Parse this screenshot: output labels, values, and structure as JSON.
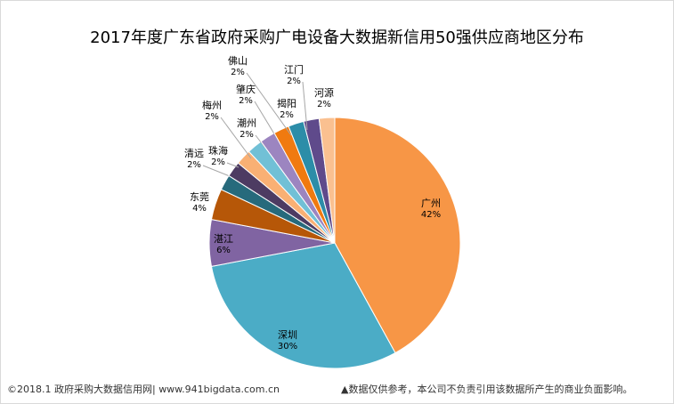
{
  "chart_data": {
    "type": "pie",
    "title": "2017年度广东省政府采购广电设备大数据新信用50强供应商地区分布",
    "slices": [
      {
        "label": "广州",
        "value": 42,
        "pct": "42%",
        "color": "#F79646"
      },
      {
        "label": "深圳",
        "value": 30,
        "pct": "30%",
        "color": "#4BACC6"
      },
      {
        "label": "湛江",
        "value": 6,
        "pct": "6%",
        "color": "#8064A2"
      },
      {
        "label": "东莞",
        "value": 4,
        "pct": "4%",
        "color": "#B65708"
      },
      {
        "label": "清远",
        "value": 2,
        "pct": "2%",
        "color": "#276A7C"
      },
      {
        "label": "珠海",
        "value": 2,
        "pct": "2%",
        "color": "#4D3B62"
      },
      {
        "label": "梅州",
        "value": 2,
        "pct": "2%",
        "color": "#F9B074"
      },
      {
        "label": "潮州",
        "value": 2,
        "pct": "2%",
        "color": "#71C0D6"
      },
      {
        "label": "肇庆",
        "value": 2,
        "pct": "2%",
        "color": "#9C85C0"
      },
      {
        "label": "佛山",
        "value": 2,
        "pct": "2%",
        "color": "#F07A10"
      },
      {
        "label": "揭阳",
        "value": 2,
        "pct": "2%",
        "color": "#2C8DA8"
      },
      {
        "label": "江门",
        "value": 2,
        "pct": "2%",
        "color": "#5F4A8B"
      },
      {
        "label": "河源",
        "value": 2,
        "pct": "2%",
        "color": "#FAC090"
      }
    ]
  },
  "footer": {
    "left": "©2018.1 政府采购大数据信用网| www.941bigdata.com.cn",
    "right": "▲数据仅供参考，本公司不负责引用该数据所产生的商业负面影响。"
  }
}
